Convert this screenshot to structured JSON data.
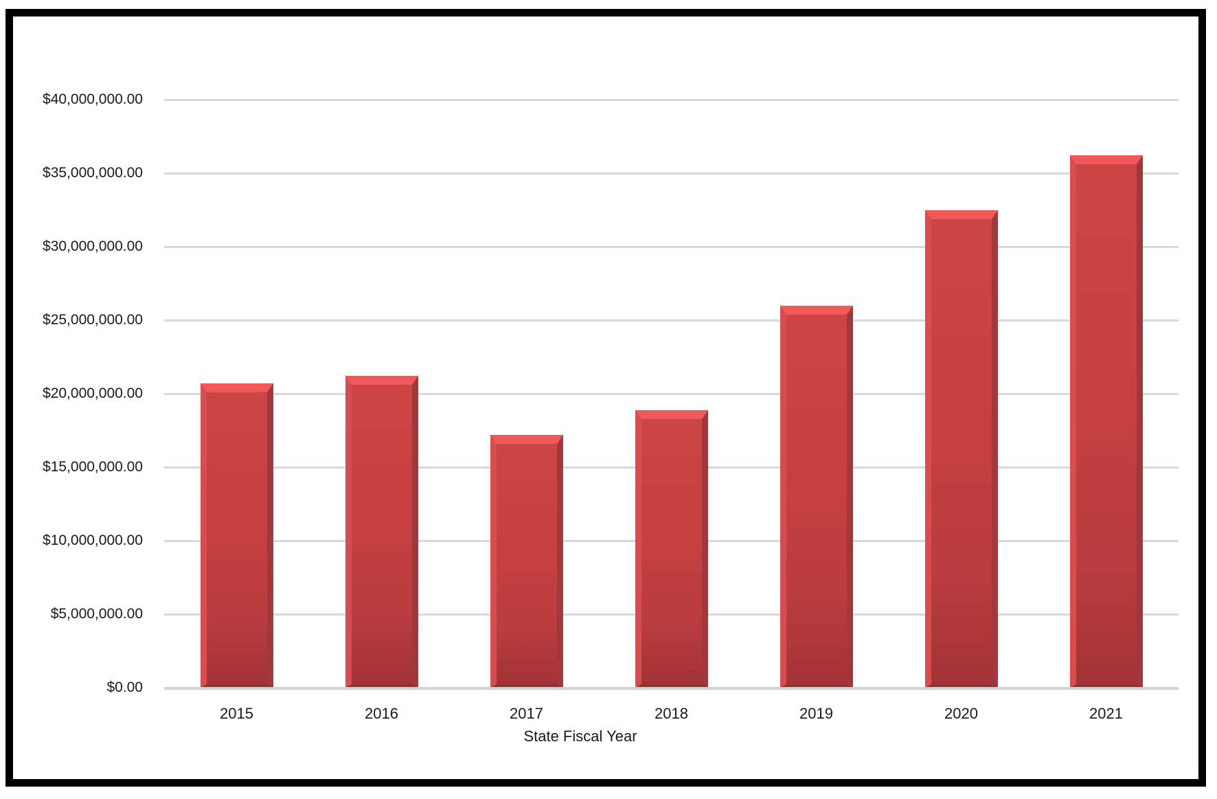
{
  "chart_data": {
    "type": "bar",
    "categories": [
      "2015",
      "2016",
      "2017",
      "2018",
      "2019",
      "2020",
      "2021"
    ],
    "values": [
      20700000,
      21200000,
      17200000,
      18900000,
      26000000,
      32500000,
      36200000
    ],
    "xlabel": "State Fiscal Year",
    "ylabel": "",
    "ylim": [
      0,
      40000000
    ],
    "ytick_step": 5000000,
    "ytick_labels": [
      "$0.00",
      "$5,000,000.00",
      "$10,000,000.00",
      "$15,000,000.00",
      "$20,000,000.00",
      "$25,000,000.00",
      "$30,000,000.00",
      "$35,000,000.00",
      "$40,000,000.00"
    ],
    "grid": true,
    "legend_position": "none",
    "bar_face_color": "#c64041",
    "bar_highlight_color": "#f0585a",
    "bar_shadow_color": "#a1383b",
    "gridline_color": "#d9d9d9",
    "frame_border_color": "#000000",
    "text_color": "#1a1a1a"
  }
}
